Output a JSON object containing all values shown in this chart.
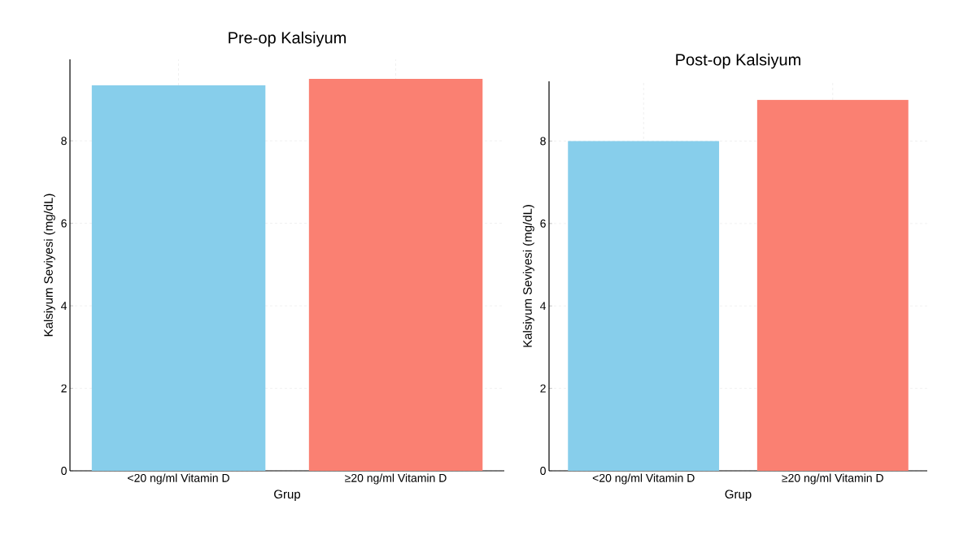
{
  "chart_data": [
    {
      "type": "bar",
      "title": "Pre-op Kalsiyum",
      "xlabel": "Grup",
      "ylabel": "Kalsiyum Seviyesi (mg/dL)",
      "categories": [
        "<20 ng/ml Vitamin D",
        "≥20 ng/ml Vitamin D"
      ],
      "values": [
        9.35,
        9.5
      ],
      "colors": [
        "#87ceeb",
        "#fa8072"
      ],
      "ylim": [
        0,
        9.975
      ],
      "yticks": [
        0,
        2,
        4,
        6,
        8
      ],
      "grid": true
    },
    {
      "type": "bar",
      "title": "Post-op Kalsiyum",
      "xlabel": "Grup",
      "ylabel": "Kalsiyum Seviyesi (mg/dL)",
      "categories": [
        "<20 ng/ml Vitamin D",
        "≥20 ng/ml Vitamin D"
      ],
      "values": [
        8.0,
        9.0
      ],
      "colors": [
        "#87ceeb",
        "#fa8072"
      ],
      "ylim": [
        0,
        9.45
      ],
      "yticks": [
        0,
        2,
        4,
        6,
        8
      ],
      "grid": true
    }
  ]
}
